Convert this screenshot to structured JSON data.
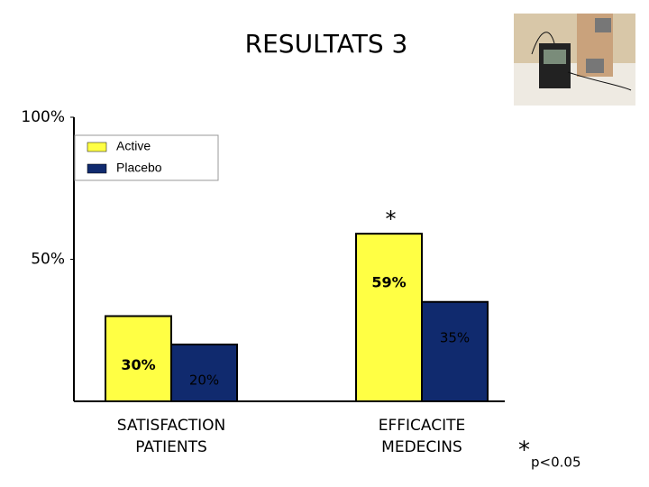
{
  "chart_data": {
    "type": "bar",
    "title": "RESULTATS 3",
    "categories": [
      "SATISFACTION PATIENTS",
      "EFFICACITE MEDECINS"
    ],
    "series": [
      {
        "name": "Active",
        "color": "#ffff44",
        "values": [
          30,
          59
        ],
        "value_labels": [
          "30%",
          "59%"
        ]
      },
      {
        "name": "Placebo",
        "color": "#102a6e",
        "values": [
          20,
          35
        ],
        "value_labels": [
          "20%",
          "35%"
        ]
      }
    ],
    "ylim": [
      0,
      100
    ],
    "yticks": [
      {
        "value": 50,
        "label": "50%"
      },
      {
        "value": 100,
        "label": "100%"
      }
    ],
    "significance_marker": "*",
    "footnote": "p<0.05"
  }
}
